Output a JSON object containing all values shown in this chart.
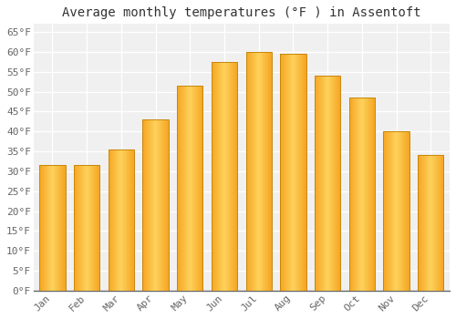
{
  "title": "Average monthly temperatures (°F ) in Assentoft",
  "months": [
    "Jan",
    "Feb",
    "Mar",
    "Apr",
    "May",
    "Jun",
    "Jul",
    "Aug",
    "Sep",
    "Oct",
    "Nov",
    "Dec"
  ],
  "values": [
    31.5,
    31.5,
    35.5,
    43.0,
    51.5,
    57.5,
    60.0,
    59.5,
    54.0,
    48.5,
    40.0,
    34.0
  ],
  "bar_color_left": "#F5A623",
  "bar_color_center": "#FFD966",
  "bar_color_right": "#F5A623",
  "bar_edge_color": "#C8870A",
  "bar_width": 0.75,
  "ylim": [
    0,
    67
  ],
  "yticks": [
    0,
    5,
    10,
    15,
    20,
    25,
    30,
    35,
    40,
    45,
    50,
    55,
    60,
    65
  ],
  "background_color": "#ffffff",
  "plot_bg_color": "#f0f0f0",
  "grid_color": "#ffffff",
  "title_fontsize": 10,
  "tick_fontsize": 8,
  "font_family": "monospace"
}
